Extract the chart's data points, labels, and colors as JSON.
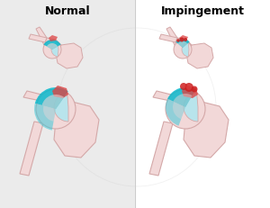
{
  "title_normal": "Normal",
  "title_impingement": "Impingement",
  "bg_left": "#ebebeb",
  "bg_right": "#ffffff",
  "title_fontsize": 9,
  "title_fontweight": "bold",
  "bone_color": "#f2d8d8",
  "bone_color2": "#ead0d0",
  "bone_edge": "#d4a8a8",
  "bursa_color": "#00b8cc",
  "bursa_color2": "#40c8d8",
  "bursa_alpha": 0.82,
  "tendon_color": "#b8e4ec",
  "red_color": "#cc2020",
  "red_color2": "#dd4444",
  "divider_color": "#cccccc",
  "watermark_color": "#c8c8c8"
}
